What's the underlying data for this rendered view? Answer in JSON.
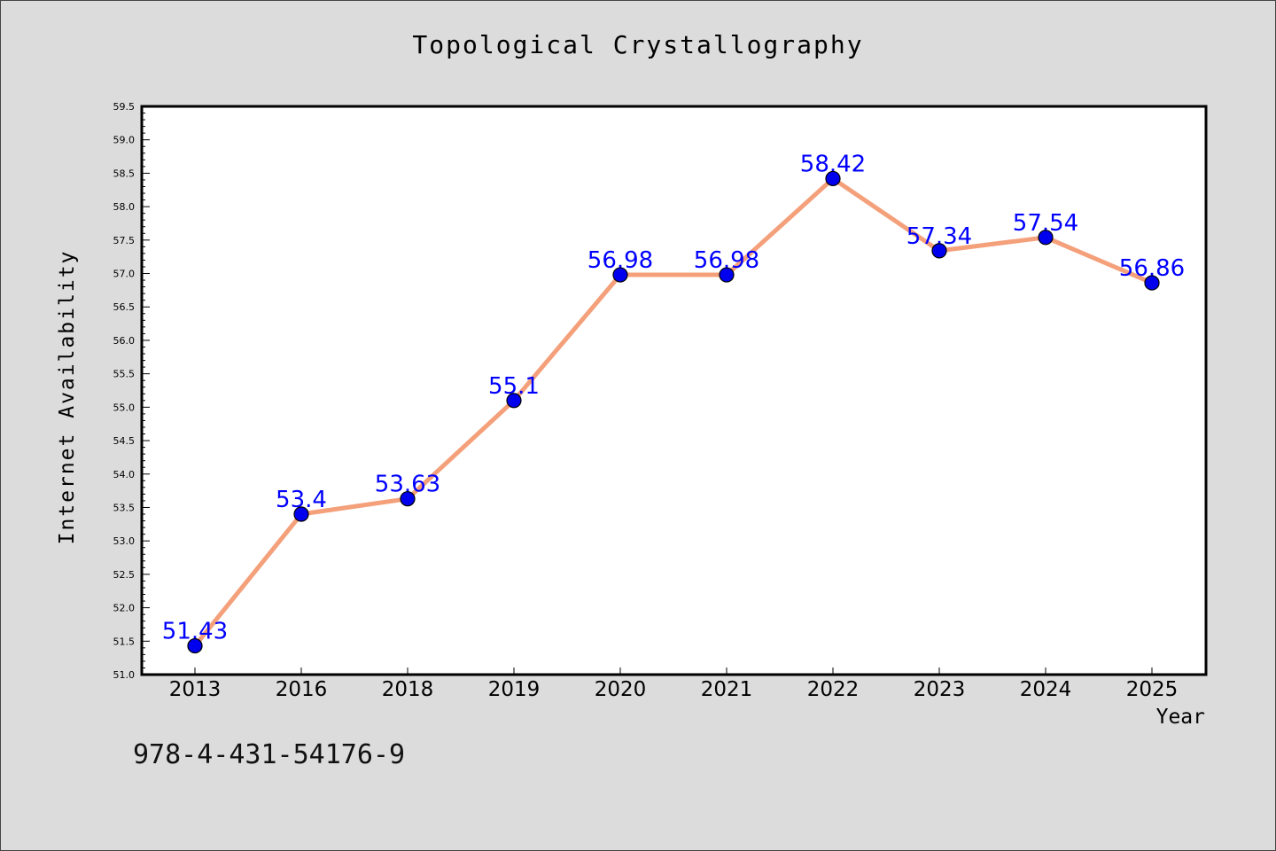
{
  "chart_data": {
    "type": "line",
    "title": "Topological Crystallography",
    "xlabel": "Year",
    "ylabel": "Internet Availability",
    "categories": [
      "2013",
      "2016",
      "2018",
      "2019",
      "2020",
      "2021",
      "2022",
      "2023",
      "2024",
      "2025"
    ],
    "values": [
      51.43,
      53.4,
      53.63,
      55.1,
      56.98,
      56.98,
      58.42,
      57.34,
      57.54,
      56.86
    ],
    "data_labels": [
      "51.43",
      "53.4",
      "53.63",
      "55.1",
      "56.98",
      "56.98",
      "58.42",
      "57.34",
      "57.54",
      "56.86"
    ],
    "ylim": [
      51.0,
      59.5
    ],
    "yticks": [
      "51.0",
      "51.5",
      "52.0",
      "52.5",
      "53.0",
      "53.5",
      "54.0",
      "54.5",
      "55.0",
      "55.5",
      "56.0",
      "56.5",
      "57.0",
      "57.5",
      "58.0",
      "58.5",
      "59.0",
      "59.5"
    ],
    "line_color": "#f4a07a",
    "marker_color": "#0000ee",
    "label_color": "#0000ff",
    "grid": false
  },
  "footer": {
    "code": "978-4-431-54176-9"
  }
}
